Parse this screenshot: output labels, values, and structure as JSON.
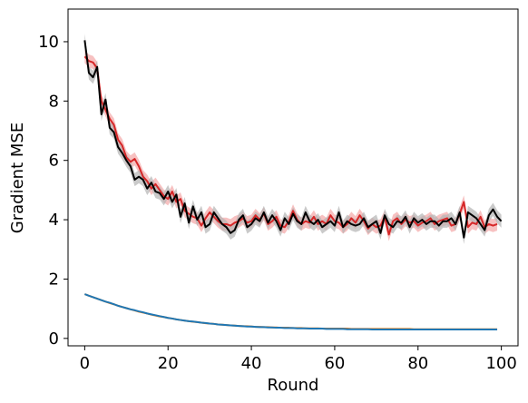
{
  "chart_data": {
    "type": "line",
    "title": "",
    "xlabel": "Round",
    "ylabel": "Gradient MSE",
    "xlim": [
      -4,
      104
    ],
    "ylim": [
      -0.25,
      11.1
    ],
    "xticks": [
      0,
      20,
      40,
      60,
      80,
      100
    ],
    "yticks": [
      0,
      2,
      4,
      6,
      8,
      10
    ],
    "grid": false,
    "legend": "none",
    "series": [
      {
        "color": "#d62728",
        "band": true,
        "band_color": "#f4a6a6",
        "values": [
          9.5,
          9.35,
          9.3,
          9.1,
          8.0,
          7.7,
          7.4,
          7.2,
          6.7,
          6.5,
          6.1,
          5.95,
          6.05,
          5.8,
          5.45,
          5.3,
          5.05,
          5.2,
          5.0,
          4.8,
          4.7,
          4.95,
          4.6,
          4.7,
          4.3,
          4.2,
          4.1,
          4.05,
          3.8,
          4.05,
          4.25,
          4.1,
          3.95,
          3.85,
          3.85,
          3.8,
          3.9,
          3.95,
          4.05,
          3.9,
          3.95,
          4.15,
          4.0,
          4.2,
          3.85,
          3.95,
          4.1,
          3.8,
          3.75,
          3.95,
          4.3,
          4.0,
          3.85,
          3.95,
          3.9,
          4.1,
          3.85,
          3.95,
          3.85,
          4.15,
          3.95,
          3.9,
          3.75,
          3.85,
          4.05,
          3.9,
          4.15,
          3.95,
          3.7,
          3.85,
          3.75,
          3.8,
          4.1,
          3.5,
          3.95,
          4.05,
          3.85,
          4.0,
          3.9,
          3.95,
          3.8,
          3.9,
          3.95,
          4.05,
          3.85,
          3.95,
          4.0,
          4.05,
          3.8,
          3.85,
          4.2,
          4.6,
          3.75,
          3.9,
          3.85,
          4.1,
          3.75,
          3.85,
          3.8,
          3.85
        ]
      },
      {
        "color": "#000000",
        "band": true,
        "band_color": "#b3b3b3",
        "values": [
          10.05,
          8.95,
          8.8,
          9.15,
          7.55,
          8.05,
          7.1,
          6.95,
          6.45,
          6.25,
          6.0,
          5.8,
          5.35,
          5.45,
          5.35,
          5.05,
          5.25,
          4.95,
          4.9,
          4.7,
          4.95,
          4.6,
          4.85,
          4.1,
          4.55,
          3.9,
          4.45,
          4.0,
          4.25,
          3.75,
          3.85,
          4.25,
          4.05,
          3.85,
          3.75,
          3.55,
          3.65,
          4.0,
          4.15,
          3.75,
          3.85,
          4.05,
          3.95,
          4.25,
          3.9,
          4.15,
          3.95,
          3.65,
          4.05,
          3.85,
          4.2,
          3.95,
          3.85,
          4.25,
          3.95,
          3.85,
          4.0,
          3.75,
          3.85,
          3.95,
          3.8,
          4.25,
          3.75,
          3.95,
          3.85,
          3.8,
          3.85,
          4.05,
          3.75,
          3.85,
          3.95,
          3.55,
          4.15,
          3.85,
          3.75,
          3.95,
          3.9,
          4.1,
          3.75,
          4.05,
          3.9,
          4.0,
          3.85,
          3.95,
          3.95,
          3.8,
          3.95,
          3.95,
          4.05,
          3.85,
          4.25,
          3.4,
          4.25,
          4.15,
          4.05,
          3.85,
          3.65,
          4.15,
          4.35,
          4.1,
          3.95
        ]
      },
      {
        "color": "#ff7f0e",
        "band": false,
        "values": [
          1.49,
          1.44,
          1.39,
          1.34,
          1.29,
          1.24,
          1.19,
          1.15,
          1.1,
          1.06,
          1.02,
          0.98,
          0.94,
          0.9,
          0.87,
          0.84,
          0.8,
          0.77,
          0.74,
          0.72,
          0.69,
          0.67,
          0.64,
          0.62,
          0.6,
          0.58,
          0.56,
          0.55,
          0.53,
          0.51,
          0.5,
          0.49,
          0.47,
          0.46,
          0.45,
          0.44,
          0.43,
          0.42,
          0.41,
          0.41,
          0.4,
          0.39,
          0.39,
          0.38,
          0.38,
          0.37,
          0.37,
          0.36,
          0.36,
          0.36,
          0.35,
          0.35,
          0.35,
          0.34,
          0.34,
          0.34,
          0.34,
          0.33,
          0.33,
          0.33,
          0.33,
          0.33,
          0.33,
          0.33,
          0.32,
          0.32,
          0.32,
          0.32,
          0.32,
          0.32,
          0.32,
          0.32,
          0.32,
          0.32,
          0.32,
          0.32,
          0.32,
          0.32,
          0.32,
          0.31,
          0.31,
          0.31,
          0.31,
          0.31,
          0.31,
          0.31,
          0.31,
          0.31,
          0.31,
          0.31,
          0.31,
          0.31,
          0.31,
          0.31,
          0.31,
          0.31,
          0.31,
          0.31,
          0.31,
          0.31
        ]
      },
      {
        "color": "#1f77b4",
        "band": false,
        "values": [
          1.49,
          1.44,
          1.39,
          1.34,
          1.29,
          1.24,
          1.2,
          1.15,
          1.1,
          1.06,
          1.02,
          0.98,
          0.95,
          0.91,
          0.88,
          0.84,
          0.81,
          0.78,
          0.75,
          0.72,
          0.69,
          0.67,
          0.64,
          0.62,
          0.6,
          0.58,
          0.57,
          0.55,
          0.53,
          0.52,
          0.5,
          0.49,
          0.47,
          0.46,
          0.45,
          0.44,
          0.43,
          0.42,
          0.41,
          0.4,
          0.4,
          0.39,
          0.38,
          0.38,
          0.37,
          0.37,
          0.36,
          0.36,
          0.35,
          0.35,
          0.35,
          0.34,
          0.34,
          0.34,
          0.33,
          0.33,
          0.33,
          0.33,
          0.32,
          0.32,
          0.32,
          0.32,
          0.32,
          0.31,
          0.31,
          0.31,
          0.31,
          0.31,
          0.31,
          0.3,
          0.3,
          0.3,
          0.3,
          0.3,
          0.3,
          0.3,
          0.3,
          0.3,
          0.3,
          0.3,
          0.3,
          0.3,
          0.3,
          0.3,
          0.3,
          0.3,
          0.3,
          0.3,
          0.3,
          0.3,
          0.3,
          0.3,
          0.3,
          0.3,
          0.3,
          0.3,
          0.3,
          0.3,
          0.3,
          0.3
        ]
      }
    ]
  }
}
